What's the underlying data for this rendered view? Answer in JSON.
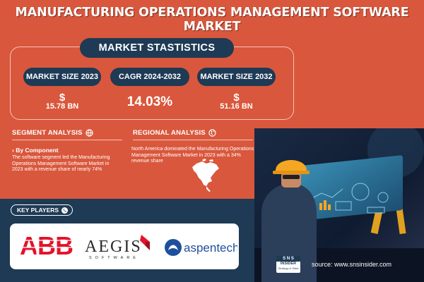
{
  "title": "MANUFACTURING OPERATIONS MANAGEMENT SOFTWARE MARKET",
  "stats": {
    "heading": "MARKET STASTISTICS",
    "items": [
      {
        "label": "MARKET SIZE 2023",
        "currency": "$",
        "value": "15.78 BN"
      },
      {
        "label": "CAGR 2024-2032",
        "value": "14.03%"
      },
      {
        "label": "MARKET SIZE 2032",
        "currency": "$",
        "value": "51.16 BN"
      }
    ]
  },
  "segment": {
    "title": "SEGMENT ANALYSIS",
    "subheading": "› By Component",
    "text": "The software segment led the Manufacturing Operations Management Software Market in 2023 with a revenue share of nearly 74%"
  },
  "regional": {
    "title": "REGIONAL ANALYSIS",
    "text": "North America dominated the Manufacturing Operations Management Software Market in 2023 with a 34% revenue share"
  },
  "key_players": {
    "label": "KEY PLAYERS",
    "logos": [
      {
        "name": "ABB",
        "color": "#e4122a"
      },
      {
        "name": "AEGIS",
        "sub": "SOFTWARE",
        "color": "#2a2a2a"
      },
      {
        "name": "aspentech",
        "color": "#1e4f9c"
      }
    ]
  },
  "source": "source: www.snsinsider.com",
  "brand": {
    "top": "S N S",
    "line1": "INSIDER",
    "line2": "Strategy & Stats"
  },
  "colors": {
    "background": "#d9573c",
    "navy": "#1e3a55",
    "accent_orange": "#f39c12"
  }
}
